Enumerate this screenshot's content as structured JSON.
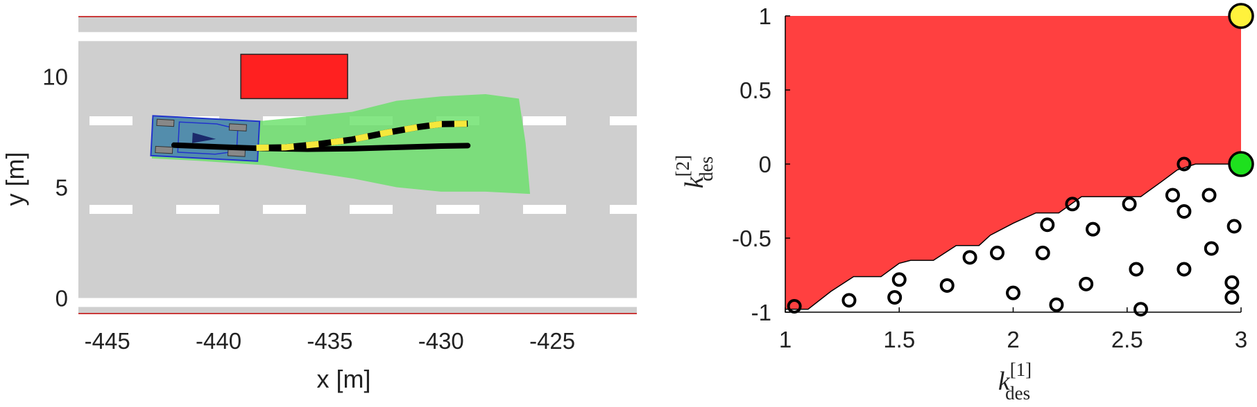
{
  "chart_data": [
    {
      "type": "scatter",
      "xlabel": "x [m]",
      "ylabel": "y [m]",
      "xlim": [
        -446.3,
        -421.2
      ],
      "ylim": [
        -0.7,
        12.7
      ],
      "x_ticks": [
        "-445",
        "-440",
        "-435",
        "-430",
        "-425"
      ],
      "y_ticks": [
        "0",
        "5",
        "10"
      ],
      "x_tick_values": [
        -445,
        -440,
        -435,
        -430,
        -425
      ],
      "y_tick_values": [
        0,
        5,
        10
      ],
      "road": {
        "solid_lines_y": [
          -0.2,
          11.8
        ],
        "dashed_lines_y": [
          4,
          8
        ],
        "edge_lines_y": [
          -0.7,
          12.7
        ]
      },
      "obstacle": {
        "x": [
          -439,
          -434.2
        ],
        "y": [
          9,
          11
        ]
      },
      "vehicle": {
        "x": [
          -443,
          -438.2
        ],
        "y": [
          6.3,
          8.1
        ]
      },
      "reachable_set": [
        [
          -443,
          6.3
        ],
        [
          -441,
          6.2
        ],
        [
          -438,
          6.0
        ],
        [
          -436,
          5.7
        ],
        [
          -434,
          5.4
        ],
        [
          -432,
          5.0
        ],
        [
          -430,
          4.8
        ],
        [
          -428,
          4.8
        ],
        [
          -426,
          4.7
        ],
        [
          -426.2,
          7.0
        ],
        [
          -426.5,
          9.0
        ],
        [
          -428,
          9.2
        ],
        [
          -430,
          9.1
        ],
        [
          -432,
          8.9
        ],
        [
          -434,
          8.4
        ],
        [
          -436,
          8.2
        ],
        [
          -438,
          8.0
        ],
        [
          -440,
          8.1
        ],
        [
          -443,
          8.1
        ]
      ],
      "series": [
        {
          "style": "solid",
          "color": "#000000",
          "points": [
            [
              -442,
              6.9
            ],
            [
              -440,
              6.82
            ],
            [
              -438,
              6.75
            ],
            [
              -436,
              6.72
            ],
            [
              -434,
              6.74
            ],
            [
              -432,
              6.8
            ],
            [
              -430,
              6.86
            ],
            [
              -428.8,
              6.88
            ]
          ]
        },
        {
          "style": "dashed",
          "color": "#f6e83c",
          "points": [
            [
              -438.3,
              6.78
            ],
            [
              -437,
              6.8
            ],
            [
              -435.5,
              6.95
            ],
            [
              -434,
              7.15
            ],
            [
              -432.5,
              7.45
            ],
            [
              -431,
              7.72
            ],
            [
              -430,
              7.85
            ],
            [
              -428.8,
              7.87
            ]
          ]
        }
      ]
    },
    {
      "type": "scatter",
      "xlabel": "k_des^[1]",
      "ylabel": "k_des^[2]",
      "xlabel_parts": {
        "base": "k",
        "sup": "[1]",
        "sub": "des"
      },
      "ylabel_parts": {
        "base": "k",
        "sup": "[2]",
        "sub": "des"
      },
      "xlim": [
        1,
        3
      ],
      "ylim": [
        -1,
        1
      ],
      "x_ticks": [
        "1",
        "1.5",
        "2",
        "2.5",
        "3"
      ],
      "y_ticks": [
        "-1",
        "-0.5",
        "0",
        "0.5",
        "1"
      ],
      "x_tick_values": [
        1,
        1.5,
        2,
        2.5,
        3
      ],
      "y_tick_values": [
        -1,
        -0.5,
        0,
        0.5,
        1
      ],
      "unsafe_region_color": "#ff4040",
      "unsafe_boundary": [
        [
          1,
          -0.98
        ],
        [
          1.1,
          -0.98
        ],
        [
          1.2,
          -0.86
        ],
        [
          1.3,
          -0.76
        ],
        [
          1.42,
          -0.76
        ],
        [
          1.5,
          -0.67
        ],
        [
          1.55,
          -0.65
        ],
        [
          1.65,
          -0.65
        ],
        [
          1.75,
          -0.55
        ],
        [
          1.85,
          -0.55
        ],
        [
          1.9,
          -0.48
        ],
        [
          2,
          -0.4
        ],
        [
          2.1,
          -0.33
        ],
        [
          2.2,
          -0.33
        ],
        [
          2.3,
          -0.22
        ],
        [
          2.56,
          -0.22
        ],
        [
          2.65,
          -0.12
        ],
        [
          2.72,
          -0.04
        ],
        [
          2.8,
          0
        ],
        [
          3,
          0
        ]
      ],
      "samples": [
        [
          1.04,
          -0.96
        ],
        [
          1.28,
          -0.92
        ],
        [
          1.48,
          -0.9
        ],
        [
          1.5,
          -0.78
        ],
        [
          1.71,
          -0.82
        ],
        [
          1.81,
          -0.63
        ],
        [
          1.93,
          -0.6
        ],
        [
          2.0,
          -0.87
        ],
        [
          2.13,
          -0.6
        ],
        [
          2.15,
          -0.41
        ],
        [
          2.19,
          -0.95
        ],
        [
          2.26,
          -0.27
        ],
        [
          2.32,
          -0.81
        ],
        [
          2.35,
          -0.44
        ],
        [
          2.51,
          -0.27
        ],
        [
          2.54,
          -0.71
        ],
        [
          2.56,
          -0.98
        ],
        [
          2.75,
          0.0
        ],
        [
          2.7,
          -0.21
        ],
        [
          2.75,
          -0.32
        ],
        [
          2.75,
          -0.71
        ],
        [
          2.86,
          -0.21
        ],
        [
          2.87,
          -0.57
        ],
        [
          2.96,
          -0.8
        ],
        [
          2.96,
          -0.9
        ],
        [
          2.97,
          -0.42
        ]
      ],
      "highlight_points": [
        {
          "x": 3,
          "y": 1,
          "color": "#fff23c"
        },
        {
          "x": 3,
          "y": 0,
          "color": "#1ee01e"
        }
      ],
      "sample_color": "#000000"
    }
  ]
}
